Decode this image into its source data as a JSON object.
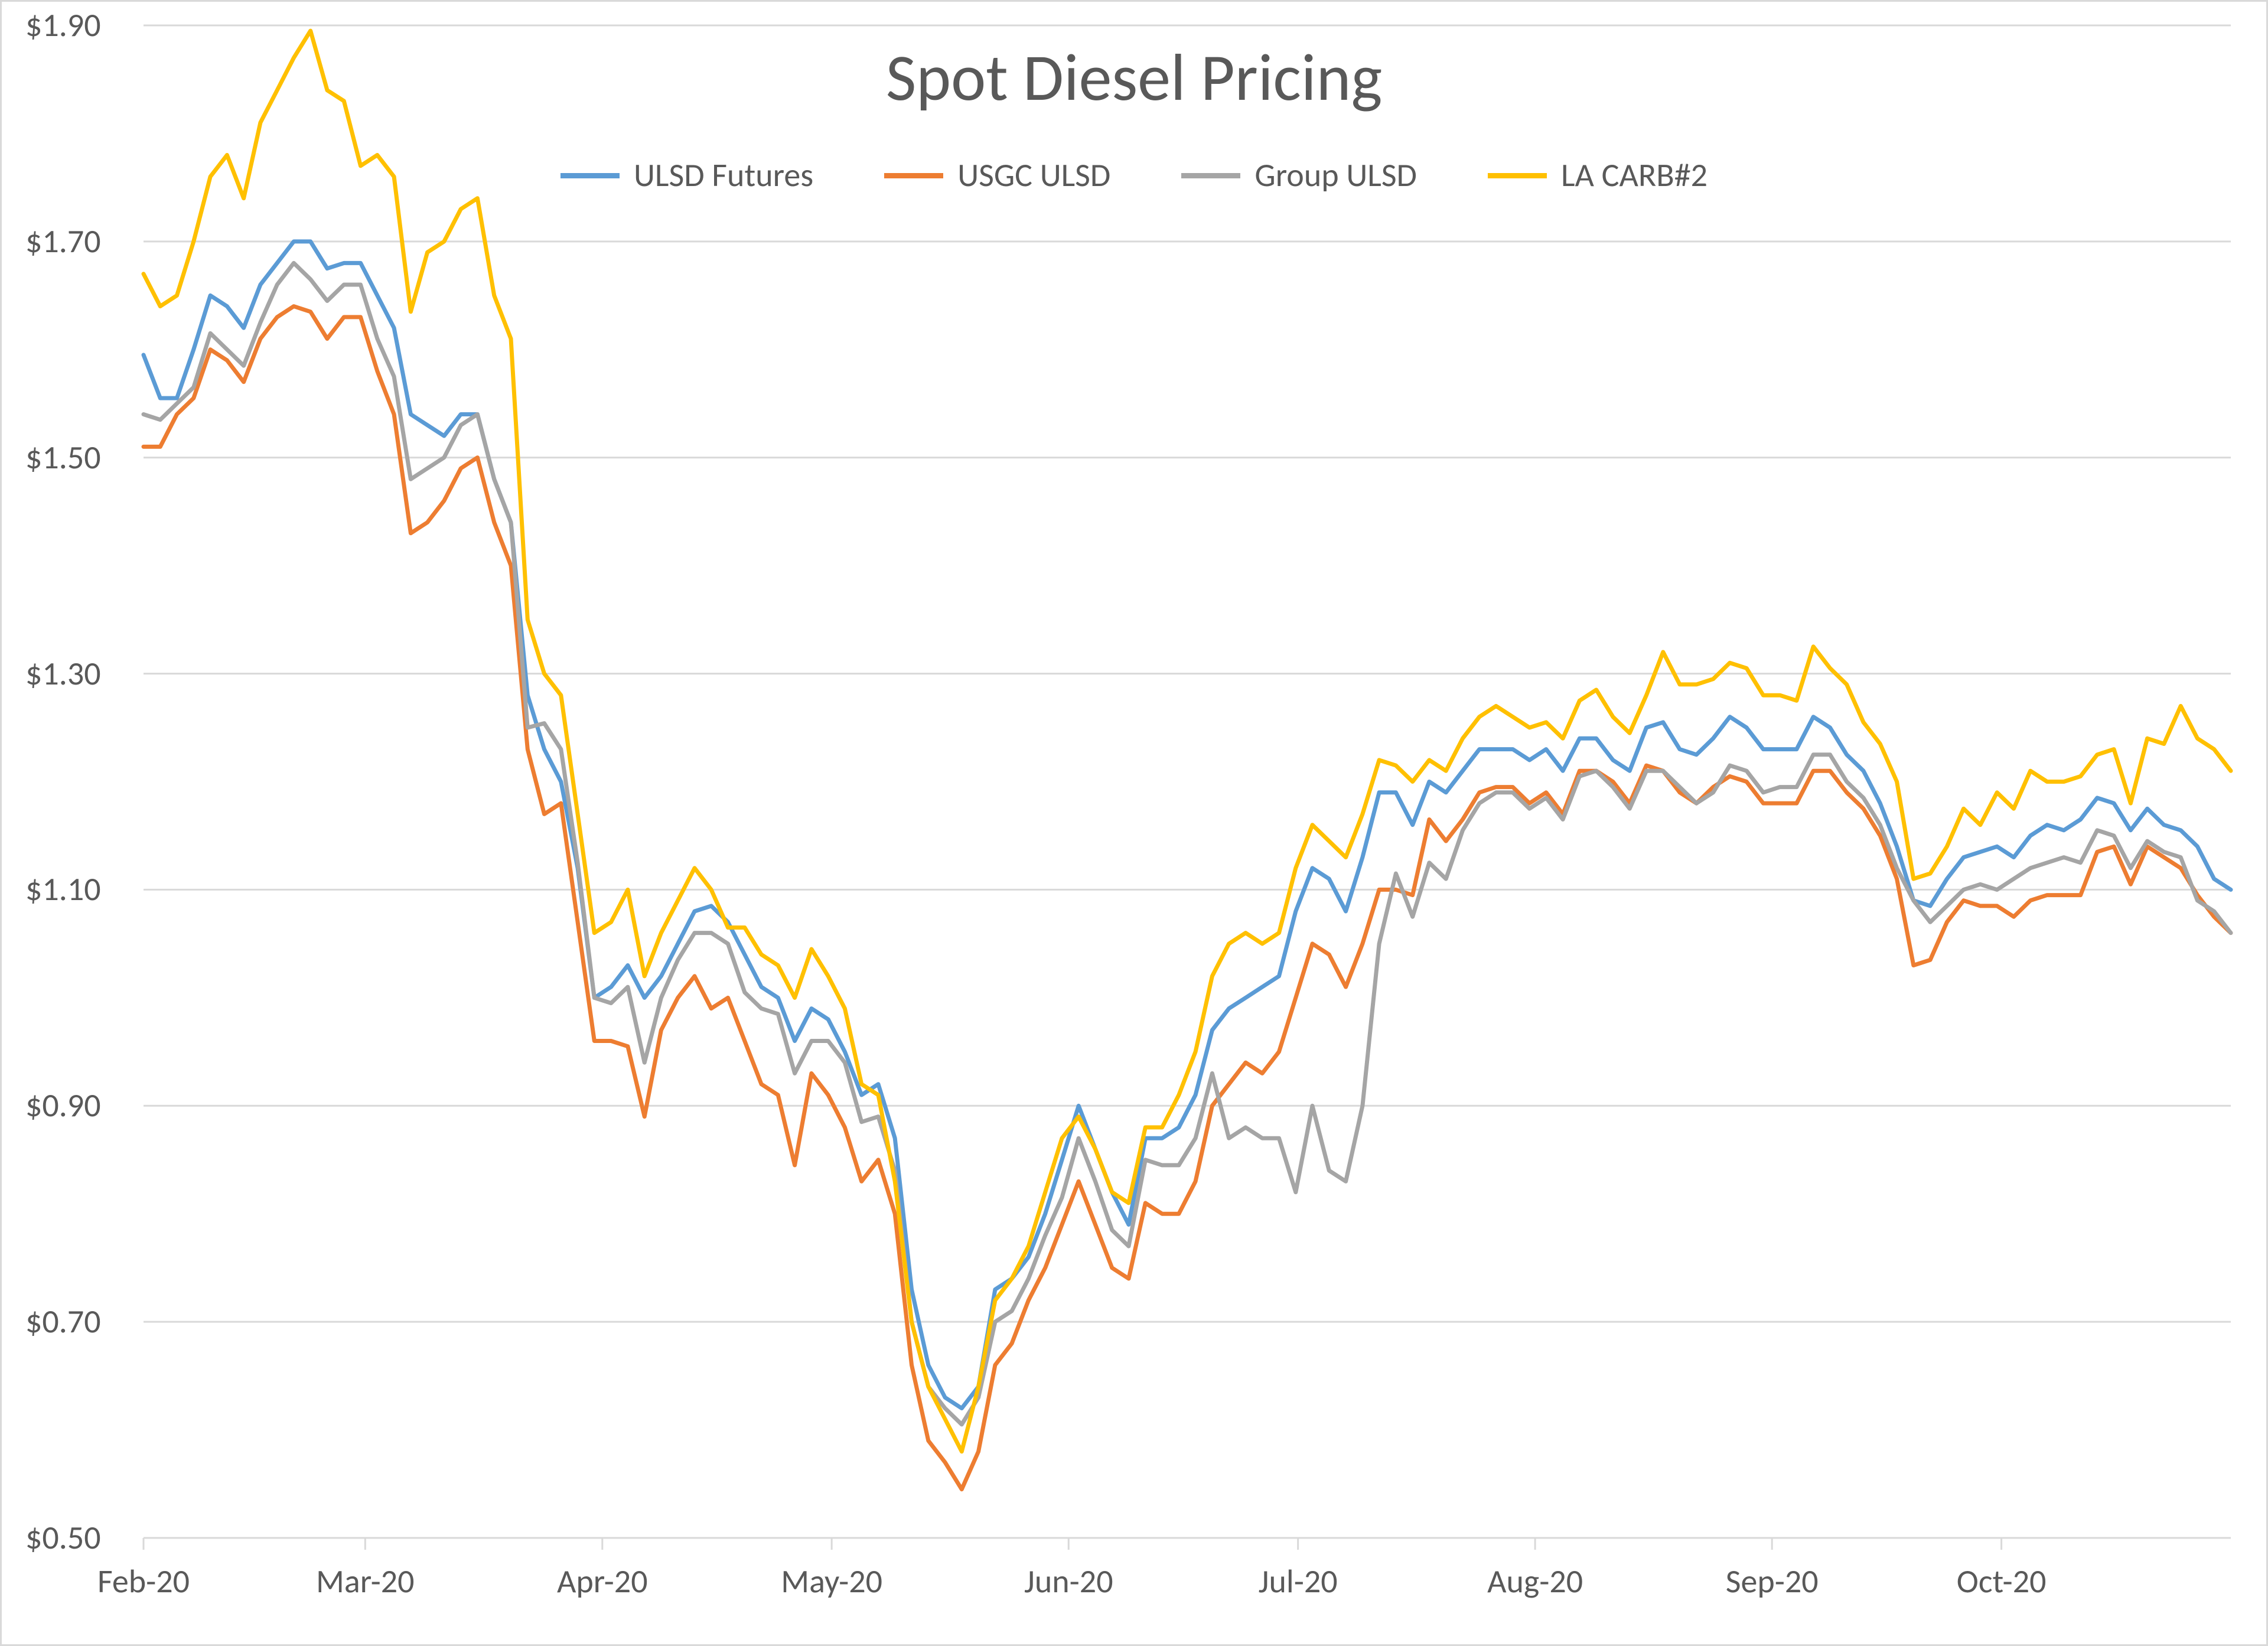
{
  "chart": {
    "type": "line",
    "title": "Spot Diesel Pricing",
    "title_fontsize": 112,
    "title_color": "#595959",
    "background_color": "#ffffff",
    "border_color": "#d9d9d9",
    "grid_color": "#d9d9d9",
    "vertical_grid": false,
    "axis_label_fontsize": 56,
    "axis_label_color": "#595959",
    "line_width": 7,
    "y": {
      "min": 0.5,
      "max": 1.9,
      "tick_step": 0.2,
      "tick_labels": [
        "$0.50",
        "$0.70",
        "$0.90",
        "$1.10",
        "$1.30",
        "$1.50",
        "$1.70",
        "$1.90"
      ],
      "tick_values": [
        0.5,
        0.7,
        0.9,
        1.1,
        1.3,
        1.5,
        1.7,
        1.9
      ]
    },
    "x": {
      "type": "date",
      "min": "2020-02-01",
      "max": "2020-10-31",
      "tick_labels": [
        "Feb-20",
        "Mar-20",
        "Apr-20",
        "May-20",
        "Jun-20",
        "Jul-20",
        "Aug-20",
        "Sep-20",
        "Oct-20"
      ],
      "tick_positions": [
        0.0,
        0.1062,
        0.2198,
        0.3297,
        0.4432,
        0.5531,
        0.6667,
        0.7802,
        0.8901
      ]
    },
    "legend": {
      "position": "top",
      "fontsize": 56,
      "items": [
        {
          "label": "ULSD Futures",
          "color": "#5b9bd5"
        },
        {
          "label": "USGC ULSD",
          "color": "#ed7d31"
        },
        {
          "label": "Group ULSD",
          "color": "#a5a5a5"
        },
        {
          "label": "LA CARB#2",
          "color": "#ffc000"
        }
      ]
    },
    "series": [
      {
        "name": "ULSD Futures",
        "color": "#5b9bd5",
        "x": [
          0.0,
          0.008,
          0.016,
          0.024,
          0.032,
          0.04,
          0.048,
          0.056,
          0.064,
          0.072,
          0.08,
          0.088,
          0.096,
          0.104,
          0.112,
          0.12,
          0.128,
          0.136,
          0.144,
          0.152,
          0.16,
          0.168,
          0.176,
          0.184,
          0.192,
          0.2,
          0.208,
          0.216,
          0.224,
          0.232,
          0.24,
          0.248,
          0.256,
          0.264,
          0.272,
          0.28,
          0.288,
          0.296,
          0.304,
          0.312,
          0.32,
          0.328,
          0.336,
          0.344,
          0.352,
          0.36,
          0.368,
          0.376,
          0.384,
          0.392,
          0.4,
          0.408,
          0.416,
          0.424,
          0.432,
          0.44,
          0.448,
          0.456,
          0.464,
          0.472,
          0.48,
          0.488,
          0.496,
          0.504,
          0.512,
          0.52,
          0.528,
          0.536,
          0.544,
          0.552,
          0.56,
          0.568,
          0.576,
          0.584,
          0.592,
          0.6,
          0.608,
          0.616,
          0.624,
          0.632,
          0.64,
          0.648,
          0.656,
          0.664,
          0.672,
          0.68,
          0.688,
          0.696,
          0.704,
          0.712,
          0.72,
          0.728,
          0.736,
          0.744,
          0.752,
          0.76,
          0.768,
          0.776,
          0.784,
          0.792,
          0.8,
          0.808,
          0.816,
          0.824,
          0.832,
          0.84,
          0.848,
          0.856,
          0.864,
          0.872,
          0.88,
          0.888,
          0.896,
          0.904,
          0.912,
          0.92,
          0.928,
          0.936,
          0.944,
          0.952,
          0.96,
          0.968,
          0.976,
          0.984,
          0.992,
          1.0
        ],
        "y": [
          1.595,
          1.555,
          1.555,
          1.6,
          1.65,
          1.64,
          1.62,
          1.66,
          1.68,
          1.7,
          1.7,
          1.675,
          1.68,
          1.68,
          1.65,
          1.62,
          1.54,
          1.53,
          1.52,
          1.54,
          1.54,
          1.48,
          1.44,
          1.28,
          1.23,
          1.2,
          1.12,
          1.0,
          1.01,
          1.03,
          1.0,
          1.02,
          1.05,
          1.08,
          1.085,
          1.07,
          1.04,
          1.01,
          1.0,
          0.96,
          0.99,
          0.98,
          0.95,
          0.91,
          0.92,
          0.87,
          0.73,
          0.66,
          0.63,
          0.62,
          0.64,
          0.73,
          0.74,
          0.76,
          0.8,
          0.85,
          0.9,
          0.86,
          0.82,
          0.79,
          0.87,
          0.87,
          0.88,
          0.91,
          0.97,
          0.99,
          1.0,
          1.01,
          1.02,
          1.08,
          1.12,
          1.11,
          1.08,
          1.13,
          1.19,
          1.19,
          1.16,
          1.2,
          1.19,
          1.21,
          1.23,
          1.23,
          1.23,
          1.22,
          1.23,
          1.21,
          1.24,
          1.24,
          1.22,
          1.21,
          1.25,
          1.255,
          1.23,
          1.225,
          1.24,
          1.26,
          1.25,
          1.23,
          1.23,
          1.23,
          1.26,
          1.25,
          1.225,
          1.21,
          1.18,
          1.14,
          1.09,
          1.085,
          1.11,
          1.13,
          1.135,
          1.14,
          1.13,
          1.15,
          1.16,
          1.155,
          1.165,
          1.185,
          1.18,
          1.155,
          1.175,
          1.16,
          1.155,
          1.14,
          1.11,
          1.1
        ],
        "note": "values estimated from chart gridlines"
      },
      {
        "name": "USGC ULSD",
        "color": "#ed7d31",
        "x": [
          0.0,
          0.008,
          0.016,
          0.024,
          0.032,
          0.04,
          0.048,
          0.056,
          0.064,
          0.072,
          0.08,
          0.088,
          0.096,
          0.104,
          0.112,
          0.12,
          0.128,
          0.136,
          0.144,
          0.152,
          0.16,
          0.168,
          0.176,
          0.184,
          0.192,
          0.2,
          0.208,
          0.216,
          0.224,
          0.232,
          0.24,
          0.248,
          0.256,
          0.264,
          0.272,
          0.28,
          0.288,
          0.296,
          0.304,
          0.312,
          0.32,
          0.328,
          0.336,
          0.344,
          0.352,
          0.36,
          0.368,
          0.376,
          0.384,
          0.392,
          0.4,
          0.408,
          0.416,
          0.424,
          0.432,
          0.44,
          0.448,
          0.456,
          0.464,
          0.472,
          0.48,
          0.488,
          0.496,
          0.504,
          0.512,
          0.52,
          0.528,
          0.536,
          0.544,
          0.552,
          0.56,
          0.568,
          0.576,
          0.584,
          0.592,
          0.6,
          0.608,
          0.616,
          0.624,
          0.632,
          0.64,
          0.648,
          0.656,
          0.664,
          0.672,
          0.68,
          0.688,
          0.696,
          0.704,
          0.712,
          0.72,
          0.728,
          0.736,
          0.744,
          0.752,
          0.76,
          0.768,
          0.776,
          0.784,
          0.792,
          0.8,
          0.808,
          0.816,
          0.824,
          0.832,
          0.84,
          0.848,
          0.856,
          0.864,
          0.872,
          0.88,
          0.888,
          0.896,
          0.904,
          0.912,
          0.92,
          0.928,
          0.936,
          0.944,
          0.952,
          0.96,
          0.968,
          0.976,
          0.984,
          0.992,
          1.0
        ],
        "y": [
          1.51,
          1.51,
          1.54,
          1.555,
          1.6,
          1.59,
          1.57,
          1.61,
          1.63,
          1.64,
          1.635,
          1.61,
          1.63,
          1.63,
          1.58,
          1.54,
          1.43,
          1.44,
          1.46,
          1.49,
          1.5,
          1.44,
          1.4,
          1.23,
          1.17,
          1.18,
          1.07,
          0.96,
          0.96,
          0.955,
          0.89,
          0.97,
          1.0,
          1.02,
          0.99,
          1.0,
          0.96,
          0.92,
          0.91,
          0.845,
          0.93,
          0.91,
          0.88,
          0.83,
          0.85,
          0.8,
          0.66,
          0.59,
          0.57,
          0.545,
          0.58,
          0.66,
          0.68,
          0.72,
          0.75,
          0.79,
          0.83,
          0.79,
          0.75,
          0.74,
          0.81,
          0.8,
          0.8,
          0.83,
          0.9,
          0.92,
          0.94,
          0.93,
          0.95,
          1.0,
          1.05,
          1.04,
          1.01,
          1.05,
          1.1,
          1.1,
          1.095,
          1.165,
          1.145,
          1.165,
          1.19,
          1.195,
          1.195,
          1.18,
          1.19,
          1.17,
          1.21,
          1.21,
          1.2,
          1.18,
          1.215,
          1.21,
          1.19,
          1.18,
          1.195,
          1.205,
          1.2,
          1.18,
          1.18,
          1.18,
          1.21,
          1.21,
          1.19,
          1.175,
          1.15,
          1.11,
          1.03,
          1.035,
          1.07,
          1.09,
          1.085,
          1.085,
          1.075,
          1.09,
          1.095,
          1.095,
          1.095,
          1.135,
          1.14,
          1.105,
          1.14,
          1.13,
          1.12,
          1.095,
          1.075,
          1.06
        ],
        "note": "values estimated from chart gridlines"
      },
      {
        "name": "Group ULSD",
        "color": "#a5a5a5",
        "x": [
          0.0,
          0.008,
          0.016,
          0.024,
          0.032,
          0.04,
          0.048,
          0.056,
          0.064,
          0.072,
          0.08,
          0.088,
          0.096,
          0.104,
          0.112,
          0.12,
          0.128,
          0.136,
          0.144,
          0.152,
          0.16,
          0.168,
          0.176,
          0.184,
          0.192,
          0.2,
          0.208,
          0.216,
          0.224,
          0.232,
          0.24,
          0.248,
          0.256,
          0.264,
          0.272,
          0.28,
          0.288,
          0.296,
          0.304,
          0.312,
          0.32,
          0.328,
          0.336,
          0.344,
          0.352,
          0.36,
          0.368,
          0.376,
          0.384,
          0.392,
          0.4,
          0.408,
          0.416,
          0.424,
          0.432,
          0.44,
          0.448,
          0.456,
          0.464,
          0.472,
          0.48,
          0.488,
          0.496,
          0.504,
          0.512,
          0.52,
          0.528,
          0.536,
          0.544,
          0.552,
          0.56,
          0.568,
          0.576,
          0.584,
          0.592,
          0.6,
          0.608,
          0.616,
          0.624,
          0.632,
          0.64,
          0.648,
          0.656,
          0.664,
          0.672,
          0.68,
          0.688,
          0.696,
          0.704,
          0.712,
          0.72,
          0.728,
          0.736,
          0.744,
          0.752,
          0.76,
          0.768,
          0.776,
          0.784,
          0.792,
          0.8,
          0.808,
          0.816,
          0.824,
          0.832,
          0.84,
          0.848,
          0.856,
          0.864,
          0.872,
          0.88,
          0.888,
          0.896,
          0.904,
          0.912,
          0.92,
          0.928,
          0.936,
          0.944,
          0.952,
          0.96,
          0.968,
          0.976,
          0.984,
          0.992,
          1.0
        ],
        "y": [
          1.54,
          1.535,
          1.55,
          1.565,
          1.615,
          1.6,
          1.585,
          1.625,
          1.66,
          1.68,
          1.665,
          1.645,
          1.66,
          1.66,
          1.61,
          1.575,
          1.48,
          1.49,
          1.5,
          1.53,
          1.54,
          1.48,
          1.44,
          1.25,
          1.254,
          1.23,
          1.125,
          1.0,
          0.995,
          1.01,
          0.94,
          1.0,
          1.035,
          1.06,
          1.06,
          1.05,
          1.005,
          0.99,
          0.985,
          0.93,
          0.96,
          0.96,
          0.94,
          0.885,
          0.89,
          0.84,
          0.7,
          0.64,
          0.62,
          0.605,
          0.63,
          0.7,
          0.71,
          0.74,
          0.78,
          0.815,
          0.87,
          0.83,
          0.785,
          0.77,
          0.85,
          0.845,
          0.845,
          0.87,
          0.93,
          0.87,
          0.88,
          0.87,
          0.87,
          0.82,
          0.9,
          0.84,
          0.83,
          0.9,
          1.05,
          1.115,
          1.075,
          1.125,
          1.11,
          1.155,
          1.18,
          1.19,
          1.19,
          1.175,
          1.185,
          1.165,
          1.205,
          1.21,
          1.195,
          1.175,
          1.21,
          1.21,
          1.195,
          1.18,
          1.19,
          1.215,
          1.21,
          1.19,
          1.195,
          1.195,
          1.225,
          1.225,
          1.2,
          1.185,
          1.16,
          1.12,
          1.09,
          1.07,
          1.085,
          1.1,
          1.105,
          1.1,
          1.11,
          1.12,
          1.125,
          1.13,
          1.125,
          1.155,
          1.15,
          1.12,
          1.145,
          1.135,
          1.13,
          1.09,
          1.08,
          1.06
        ],
        "note": "values estimated from chart gridlines"
      },
      {
        "name": "LA CARB#2",
        "color": "#ffc000",
        "x": [
          0.0,
          0.008,
          0.016,
          0.024,
          0.032,
          0.04,
          0.048,
          0.056,
          0.064,
          0.072,
          0.08,
          0.088,
          0.096,
          0.104,
          0.112,
          0.12,
          0.128,
          0.136,
          0.144,
          0.152,
          0.16,
          0.168,
          0.176,
          0.184,
          0.192,
          0.2,
          0.208,
          0.216,
          0.224,
          0.232,
          0.24,
          0.248,
          0.256,
          0.264,
          0.272,
          0.28,
          0.288,
          0.296,
          0.304,
          0.312,
          0.32,
          0.328,
          0.336,
          0.344,
          0.352,
          0.36,
          0.368,
          0.376,
          0.384,
          0.392,
          0.4,
          0.408,
          0.416,
          0.424,
          0.432,
          0.44,
          0.448,
          0.456,
          0.464,
          0.472,
          0.48,
          0.488,
          0.496,
          0.504,
          0.512,
          0.52,
          0.528,
          0.536,
          0.544,
          0.552,
          0.56,
          0.568,
          0.576,
          0.584,
          0.592,
          0.6,
          0.608,
          0.616,
          0.624,
          0.632,
          0.64,
          0.648,
          0.656,
          0.664,
          0.672,
          0.68,
          0.688,
          0.696,
          0.704,
          0.712,
          0.72,
          0.728,
          0.736,
          0.744,
          0.752,
          0.76,
          0.768,
          0.776,
          0.784,
          0.792,
          0.8,
          0.808,
          0.816,
          0.824,
          0.832,
          0.84,
          0.848,
          0.856,
          0.864,
          0.872,
          0.88,
          0.888,
          0.896,
          0.904,
          0.912,
          0.92,
          0.928,
          0.936,
          0.944,
          0.952,
          0.96,
          0.968,
          0.976,
          0.984,
          0.992,
          1.0
        ],
        "y": [
          1.67,
          1.64,
          1.65,
          1.7,
          1.76,
          1.78,
          1.74,
          1.81,
          1.84,
          1.87,
          1.895,
          1.84,
          1.83,
          1.77,
          1.78,
          1.76,
          1.635,
          1.69,
          1.7,
          1.73,
          1.74,
          1.65,
          1.61,
          1.35,
          1.3,
          1.28,
          1.17,
          1.06,
          1.07,
          1.1,
          1.02,
          1.06,
          1.09,
          1.12,
          1.1,
          1.065,
          1.065,
          1.04,
          1.03,
          1.0,
          1.045,
          1.02,
          0.99,
          0.92,
          0.91,
          0.83,
          0.7,
          0.64,
          0.61,
          0.58,
          0.64,
          0.72,
          0.74,
          0.77,
          0.82,
          0.87,
          0.89,
          0.86,
          0.82,
          0.81,
          0.88,
          0.88,
          0.91,
          0.95,
          1.02,
          1.05,
          1.06,
          1.05,
          1.06,
          1.12,
          1.16,
          1.145,
          1.13,
          1.17,
          1.22,
          1.215,
          1.2,
          1.22,
          1.21,
          1.24,
          1.26,
          1.27,
          1.26,
          1.25,
          1.255,
          1.24,
          1.275,
          1.285,
          1.26,
          1.245,
          1.28,
          1.32,
          1.29,
          1.29,
          1.295,
          1.31,
          1.305,
          1.28,
          1.28,
          1.275,
          1.325,
          1.305,
          1.29,
          1.255,
          1.235,
          1.2,
          1.11,
          1.115,
          1.14,
          1.175,
          1.16,
          1.19,
          1.175,
          1.21,
          1.2,
          1.2,
          1.205,
          1.225,
          1.23,
          1.18,
          1.24,
          1.235,
          1.27,
          1.24,
          1.23,
          1.21
        ],
        "note": "values estimated from chart gridlines"
      }
    ]
  }
}
